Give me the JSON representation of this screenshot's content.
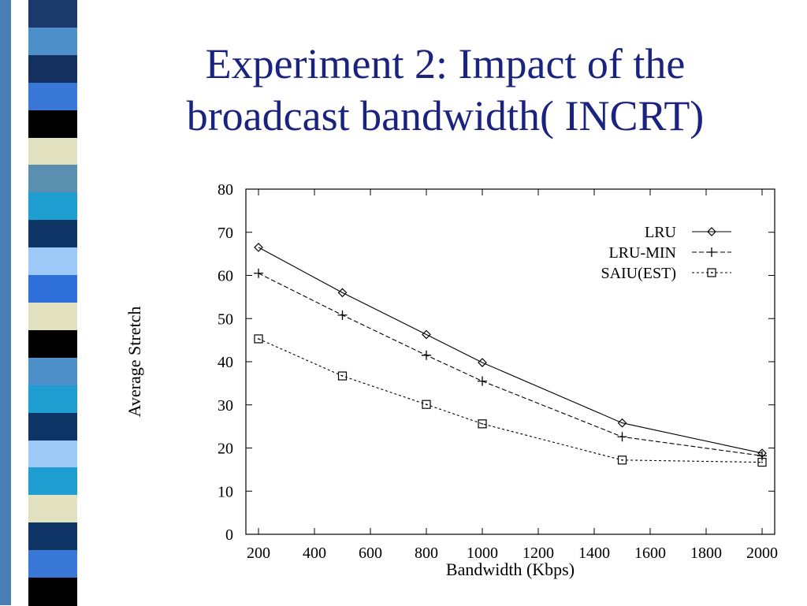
{
  "slide": {
    "title_line1": "Experiment 2: Impact of the",
    "title_line2": "broadcast bandwidth( INCRT)"
  },
  "decor": {
    "stripe_colors": [
      "#1b3a6b",
      "#4d8fc9",
      "#14305e",
      "#3a78d8",
      "#000000",
      "#e2e2c0",
      "#5a8faf",
      "#1f9fd1",
      "#0e3566",
      "#9cc9f6",
      "#2f6fd9",
      "#e2e2c0",
      "#000000",
      "#4d8fc9",
      "#1f9fd1",
      "#0e3566",
      "#9cc9f6",
      "#1f9fd1",
      "#e2e2c0",
      "#0e3566",
      "#3a78d8",
      "#000000"
    ],
    "accent": "#1a237e"
  },
  "chart_data": {
    "type": "line",
    "title": "",
    "xlabel": "Bandwidth (Kbps)",
    "ylabel": "Average Stretch",
    "xlim": [
      200,
      2000
    ],
    "ylim": [
      0,
      80
    ],
    "x_ticks": [
      200,
      400,
      600,
      800,
      1000,
      1200,
      1400,
      1600,
      1800,
      2000
    ],
    "y_ticks": [
      0,
      10,
      20,
      30,
      40,
      50,
      60,
      70,
      80
    ],
    "grid": false,
    "legend_position": "top-right",
    "x": [
      200,
      500,
      800,
      1000,
      1500,
      2000
    ],
    "series": [
      {
        "name": "LRU",
        "marker": "diamond",
        "line": "solid",
        "values": [
          66.5,
          56,
          46.3,
          39.8,
          25.8,
          18.8
        ]
      },
      {
        "name": "LRU-MIN",
        "marker": "plus",
        "line": "dashed",
        "values": [
          60.5,
          50.8,
          41.5,
          35.5,
          22.6,
          18.2
        ]
      },
      {
        "name": "SAIU(EST)",
        "marker": "square",
        "line": "dotted",
        "values": [
          45.3,
          36.7,
          30.1,
          25.6,
          17.2,
          16.7
        ]
      }
    ]
  }
}
